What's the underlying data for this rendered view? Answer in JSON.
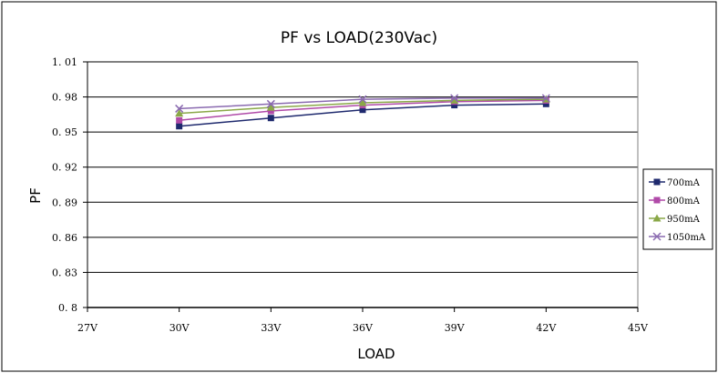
{
  "chart_data": {
    "type": "line",
    "title": "PF vs LOAD(230Vac)",
    "xlabel": "LOAD",
    "ylabel": "PF",
    "categories": [
      "27V",
      "30V",
      "33V",
      "36V",
      "39V",
      "42V",
      "45V"
    ],
    "ylim": [
      0.8,
      1.01
    ],
    "yticks": [
      1.01,
      0.98,
      0.95,
      0.92,
      0.89,
      0.86,
      0.83,
      0.8
    ],
    "ytick_labels": [
      "1. 01",
      "0. 98",
      "0. 95",
      "0. 92",
      "0. 89",
      "0. 86",
      "0. 83",
      "0. 8"
    ],
    "grid": true,
    "legend": "right",
    "series": [
      {
        "name": "700mA",
        "color": "#1f2a6e",
        "marker": "square",
        "values": [
          null,
          0.955,
          0.962,
          0.969,
          0.973,
          0.974,
          null
        ]
      },
      {
        "name": "800mA",
        "color": "#b04aa8",
        "marker": "square",
        "values": [
          null,
          0.96,
          0.968,
          0.973,
          0.976,
          0.977,
          null
        ]
      },
      {
        "name": "950mA",
        "color": "#8aa848",
        "marker": "triangle",
        "values": [
          null,
          0.966,
          0.971,
          0.975,
          0.977,
          0.978,
          null
        ]
      },
      {
        "name": "1050mA",
        "color": "#8a6ab0",
        "marker": "x",
        "values": [
          null,
          0.97,
          0.974,
          0.978,
          0.979,
          0.979,
          null
        ]
      }
    ]
  }
}
